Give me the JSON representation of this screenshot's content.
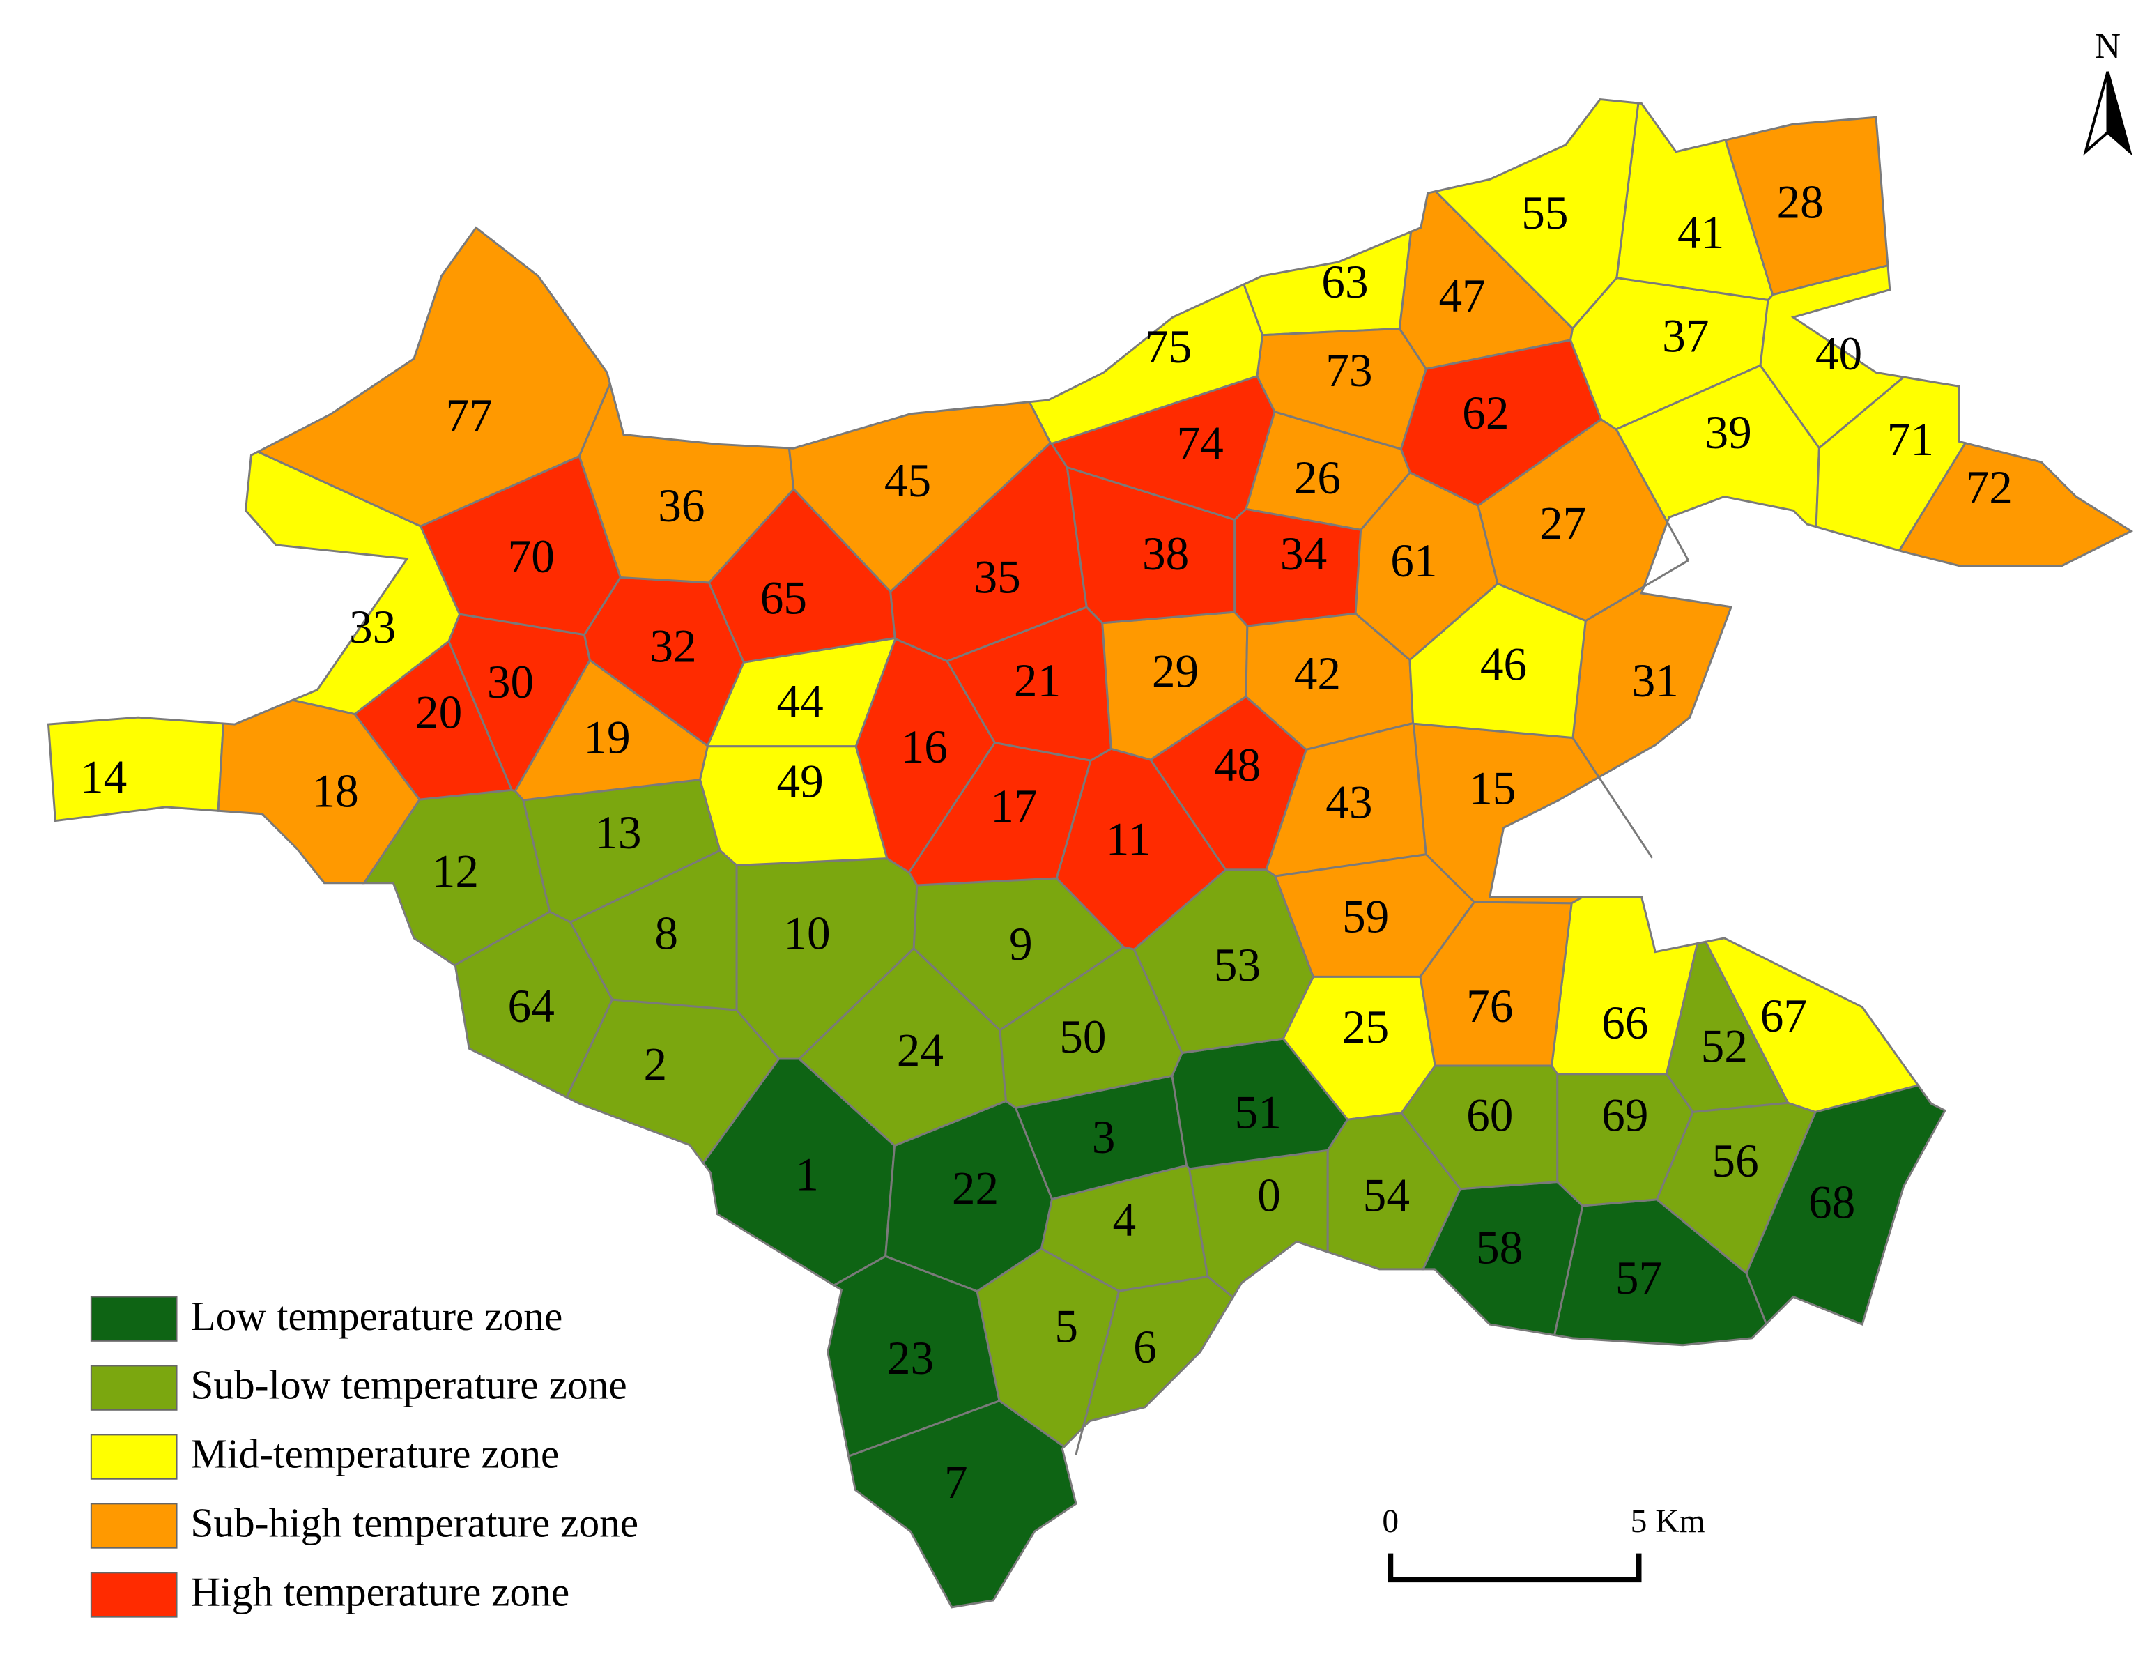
{
  "north": "N",
  "scale_bar": {
    "start": "0",
    "end": "5 Km"
  },
  "legend": [
    {
      "label": "Low temperature zone",
      "color": "#0e6414"
    },
    {
      "label": "Sub-low temperature zone",
      "color": "#7ba70f"
    },
    {
      "label": "Mid-temperature zone",
      "color": "#ffff00"
    },
    {
      "label": "Sub-high temperature zone",
      "color": "#ff9900"
    },
    {
      "label": "High temperature zone",
      "color": "#ff2b00"
    }
  ],
  "regions": [
    {
      "label": "0",
      "zone": 1
    },
    {
      "label": "1",
      "zone": 0
    },
    {
      "label": "2",
      "zone": 1
    },
    {
      "label": "3",
      "zone": 0
    },
    {
      "label": "4",
      "zone": 1
    },
    {
      "label": "5",
      "zone": 1
    },
    {
      "label": "6",
      "zone": 1
    },
    {
      "label": "7",
      "zone": 0
    },
    {
      "label": "8",
      "zone": 1
    },
    {
      "label": "9",
      "zone": 1
    },
    {
      "label": "10",
      "zone": 1
    },
    {
      "label": "11",
      "zone": 4
    },
    {
      "label": "12",
      "zone": 1
    },
    {
      "label": "13",
      "zone": 1
    },
    {
      "label": "14",
      "zone": 2
    },
    {
      "label": "15",
      "zone": 3
    },
    {
      "label": "16",
      "zone": 4
    },
    {
      "label": "17",
      "zone": 4
    },
    {
      "label": "18",
      "zone": 3
    },
    {
      "label": "19",
      "zone": 3
    },
    {
      "label": "20",
      "zone": 4
    },
    {
      "label": "21",
      "zone": 4
    },
    {
      "label": "22",
      "zone": 0
    },
    {
      "label": "23",
      "zone": 0
    },
    {
      "label": "24",
      "zone": 1
    },
    {
      "label": "25",
      "zone": 2
    },
    {
      "label": "26",
      "zone": 3
    },
    {
      "label": "27",
      "zone": 3
    },
    {
      "label": "28",
      "zone": 3
    },
    {
      "label": "29",
      "zone": 3
    },
    {
      "label": "30",
      "zone": 4
    },
    {
      "label": "31",
      "zone": 3
    },
    {
      "label": "32",
      "zone": 4
    },
    {
      "label": "33",
      "zone": 2
    },
    {
      "label": "34",
      "zone": 4
    },
    {
      "label": "35",
      "zone": 4
    },
    {
      "label": "36",
      "zone": 3
    },
    {
      "label": "37",
      "zone": 2
    },
    {
      "label": "38",
      "zone": 4
    },
    {
      "label": "39",
      "zone": 2
    },
    {
      "label": "40",
      "zone": 2
    },
    {
      "label": "41",
      "zone": 2
    },
    {
      "label": "42",
      "zone": 3
    },
    {
      "label": "43",
      "zone": 3
    },
    {
      "label": "44",
      "zone": 2
    },
    {
      "label": "45",
      "zone": 3
    },
    {
      "label": "46",
      "zone": 2
    },
    {
      "label": "47",
      "zone": 3
    },
    {
      "label": "48",
      "zone": 4
    },
    {
      "label": "49",
      "zone": 2
    },
    {
      "label": "50",
      "zone": 1
    },
    {
      "label": "51",
      "zone": 0
    },
    {
      "label": "52",
      "zone": 1
    },
    {
      "label": "53",
      "zone": 1
    },
    {
      "label": "54",
      "zone": 1
    },
    {
      "label": "55",
      "zone": 2
    },
    {
      "label": "56",
      "zone": 1
    },
    {
      "label": "57",
      "zone": 0
    },
    {
      "label": "58",
      "zone": 0
    },
    {
      "label": "59",
      "zone": 3
    },
    {
      "label": "60",
      "zone": 1
    },
    {
      "label": "61",
      "zone": 3
    },
    {
      "label": "62",
      "zone": 4
    },
    {
      "label": "63",
      "zone": 2
    },
    {
      "label": "64",
      "zone": 1
    },
    {
      "label": "65",
      "zone": 4
    },
    {
      "label": "66",
      "zone": 2
    },
    {
      "label": "67",
      "zone": 2
    },
    {
      "label": "68",
      "zone": 0
    },
    {
      "label": "69",
      "zone": 1
    },
    {
      "label": "70",
      "zone": 4
    },
    {
      "label": "71",
      "zone": 2
    },
    {
      "label": "72",
      "zone": 3
    },
    {
      "label": "73",
      "zone": 3
    },
    {
      "label": "74",
      "zone": 4
    },
    {
      "label": "75",
      "zone": 2
    },
    {
      "label": "76",
      "zone": 3
    },
    {
      "label": "77",
      "zone": 3
    }
  ]
}
